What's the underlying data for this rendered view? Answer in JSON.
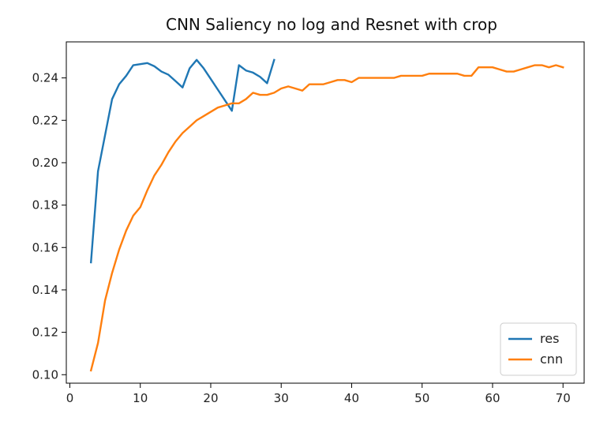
{
  "chart_data": {
    "type": "line",
    "title": "CNN Saliency no log and Resnet with crop",
    "xlabel": "",
    "ylabel": "",
    "xlim": [
      -0.5,
      73
    ],
    "ylim": [
      0.096,
      0.257
    ],
    "xticks": [
      0,
      10,
      20,
      30,
      40,
      50,
      60,
      70
    ],
    "yticks": [
      0.1,
      0.12,
      0.14,
      0.16,
      0.18,
      0.2,
      0.22,
      0.24
    ],
    "ytick_labels": [
      "0.10",
      "0.12",
      "0.14",
      "0.16",
      "0.18",
      "0.20",
      "0.22",
      "0.24"
    ],
    "grid": false,
    "legend_position": "lower-right",
    "series": [
      {
        "name": "res",
        "color": "#1f77b4",
        "x": [
          3,
          4,
          5,
          6,
          7,
          8,
          9,
          10,
          11,
          12,
          13,
          14,
          15,
          16,
          17,
          18,
          19,
          20,
          21,
          22,
          23,
          24,
          25,
          26,
          27,
          28,
          29
        ],
        "y": [
          0.153,
          0.196,
          0.213,
          0.23,
          0.237,
          0.241,
          0.246,
          0.2465,
          0.247,
          0.2455,
          0.243,
          0.2415,
          0.2385,
          0.2355,
          0.2445,
          0.2485,
          0.2445,
          0.2395,
          0.2345,
          0.2295,
          0.2245,
          0.246,
          0.2435,
          0.2425,
          0.2405,
          0.2375,
          0.2485
        ]
      },
      {
        "name": "cnn",
        "color": "#ff7f0e",
        "x": [
          3,
          4,
          5,
          6,
          7,
          8,
          9,
          10,
          11,
          12,
          13,
          14,
          15,
          16,
          17,
          18,
          19,
          20,
          21,
          22,
          23,
          24,
          25,
          26,
          27,
          28,
          29,
          30,
          31,
          32,
          33,
          34,
          35,
          36,
          37,
          38,
          39,
          40,
          41,
          42,
          43,
          44,
          45,
          46,
          47,
          48,
          49,
          50,
          51,
          52,
          53,
          54,
          55,
          56,
          57,
          58,
          59,
          60,
          61,
          62,
          63,
          64,
          65,
          66,
          67,
          68,
          69,
          70
        ],
        "y": [
          0.102,
          0.115,
          0.135,
          0.148,
          0.159,
          0.168,
          0.175,
          0.179,
          0.187,
          0.194,
          0.199,
          0.205,
          0.21,
          0.214,
          0.217,
          0.22,
          0.222,
          0.224,
          0.226,
          0.227,
          0.228,
          0.228,
          0.23,
          0.233,
          0.232,
          0.232,
          0.233,
          0.235,
          0.236,
          0.235,
          0.234,
          0.237,
          0.237,
          0.237,
          0.238,
          0.239,
          0.239,
          0.238,
          0.24,
          0.24,
          0.24,
          0.24,
          0.24,
          0.24,
          0.241,
          0.241,
          0.241,
          0.241,
          0.242,
          0.242,
          0.242,
          0.242,
          0.242,
          0.241,
          0.241,
          0.245,
          0.245,
          0.245,
          0.244,
          0.243,
          0.243,
          0.244,
          0.245,
          0.246,
          0.246,
          0.245,
          0.246,
          0.245
        ]
      }
    ]
  }
}
